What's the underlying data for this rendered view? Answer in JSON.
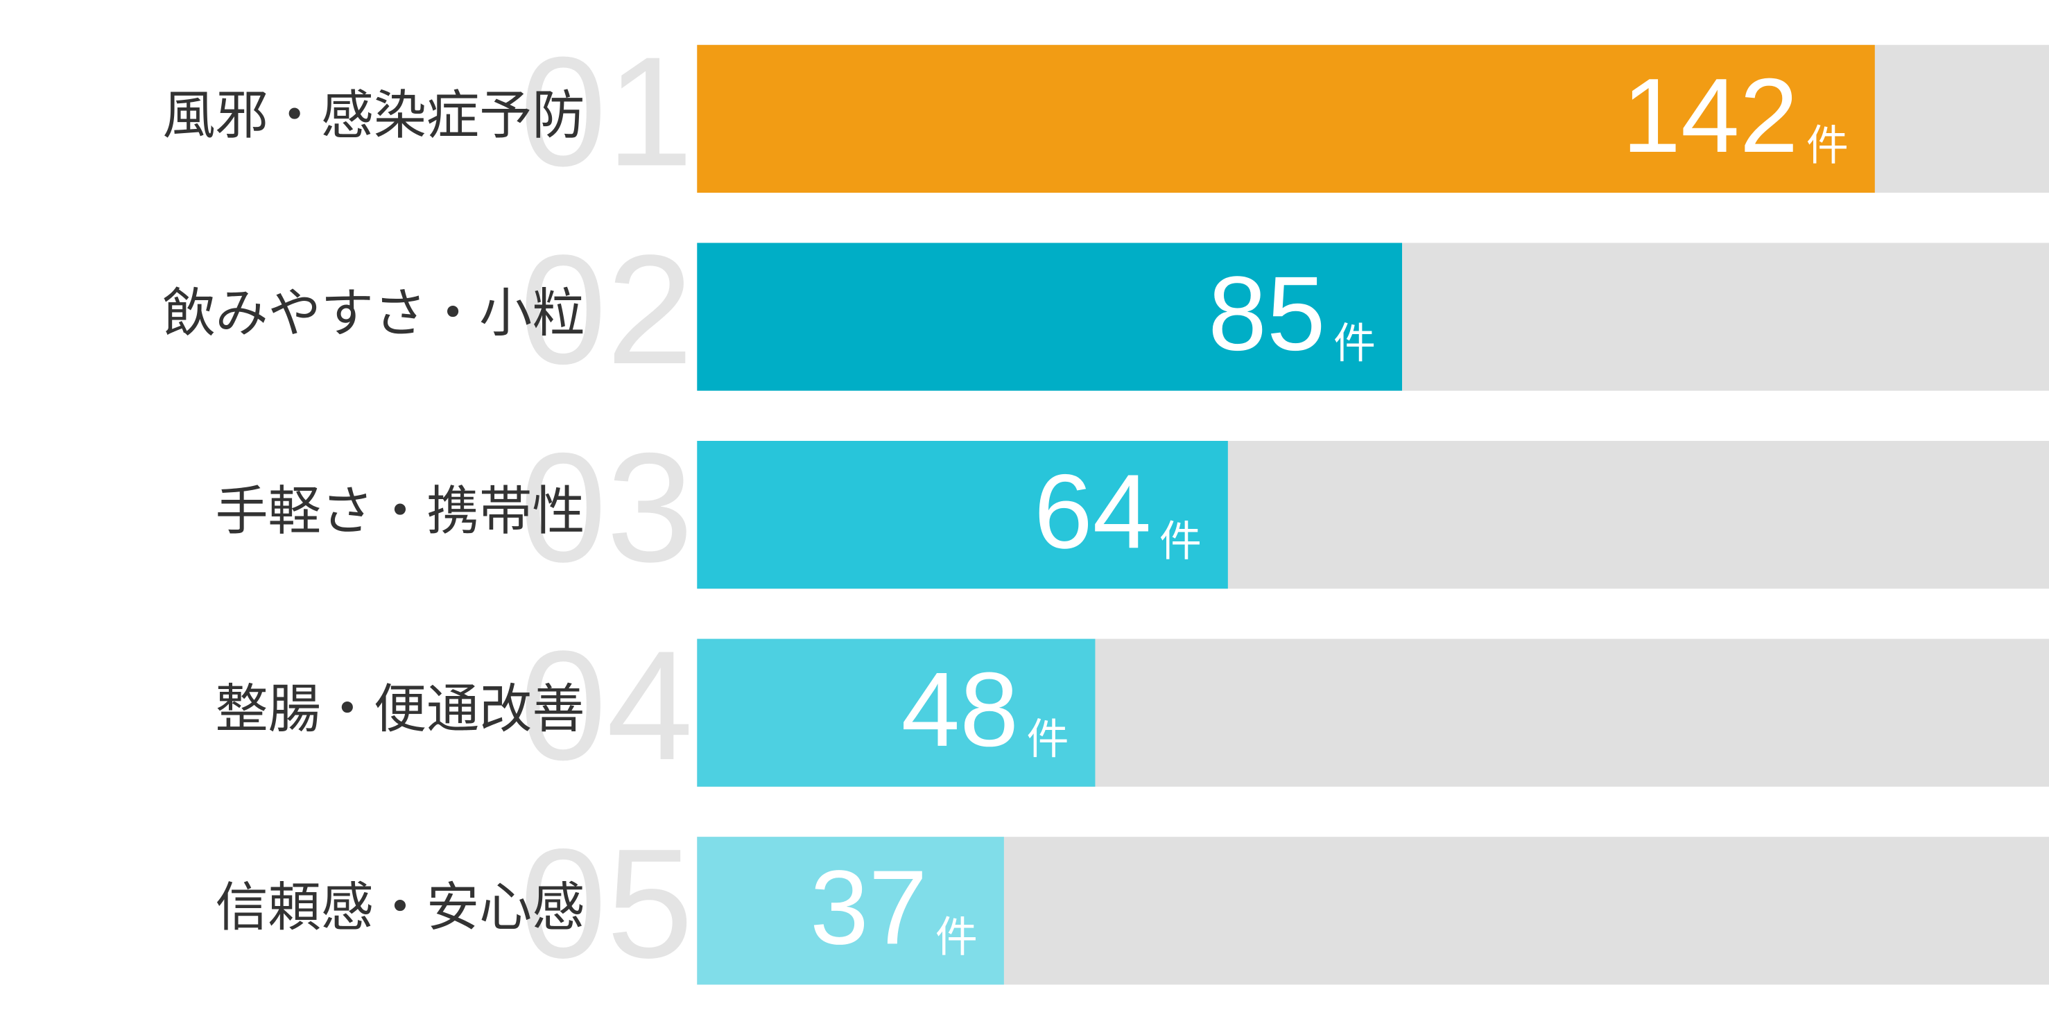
{
  "chart_data": {
    "type": "bar",
    "orientation": "horizontal",
    "categories": [
      "風邪・感染症予防",
      "飲みやすさ・小粒",
      "手軽さ・携帯性",
      "整腸・便通改善",
      "信頼感・安心感"
    ],
    "ranks": [
      "01",
      "02",
      "03",
      "04",
      "05"
    ],
    "values": [
      142,
      85,
      64,
      48,
      37
    ],
    "unit": "件",
    "colors": [
      "#f29c14",
      "#00aec6",
      "#28c5da",
      "#4dd0e1",
      "#80dde9"
    ],
    "track_color": "#e0e0e0",
    "xlim": [
      0,
      163
    ]
  }
}
